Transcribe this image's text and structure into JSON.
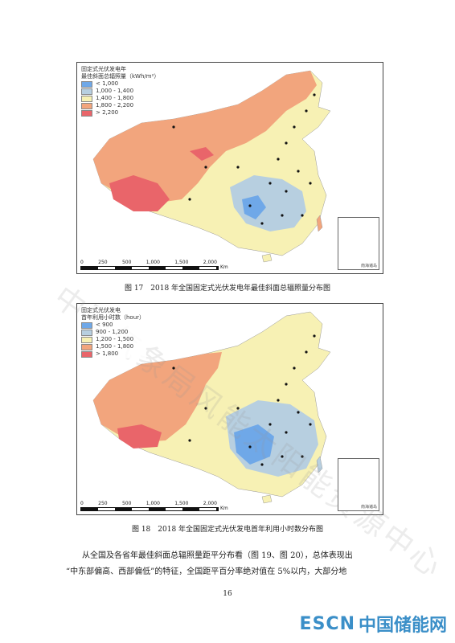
{
  "figure17": {
    "legend_title_line1": "固定式光伏发电年",
    "legend_title_line2": "最佳斜面总辐照量（kWh/m²）",
    "legend_items": [
      {
        "label": "< 1,000",
        "color": "#6fa8e8"
      },
      {
        "label": "1,000 - 1,400",
        "color": "#b7cfe0"
      },
      {
        "label": "1,400 - 1,800",
        "color": "#f7f1b4"
      },
      {
        "label": "1,800 - 2,200",
        "color": "#f2a57d"
      },
      {
        "label": "> 2,200",
        "color": "#e9656a"
      }
    ],
    "caption": "图 17　2018 年全国固定式光伏发电年最佳斜面总辐照量分布图"
  },
  "figure18": {
    "legend_title_line1": "固定式光伏发电",
    "legend_title_line2": "首年利用小时数（hour）",
    "legend_items": [
      {
        "label": "< 900",
        "color": "#6fa8e8"
      },
      {
        "label": "900 - 1,200",
        "color": "#b7cfe0"
      },
      {
        "label": "1,200 - 1,500",
        "color": "#f7f1b4"
      },
      {
        "label": "1,500 - 1,800",
        "color": "#f2a57d"
      },
      {
        "label": "> 1,800",
        "color": "#e9656a"
      }
    ],
    "caption": "图 18　2018 年全国固定式光伏发电首年利用小时数分布图"
  },
  "scale_ticks": [
    "0",
    "250",
    "500",
    "1,000",
    "1,500",
    "2,000"
  ],
  "scale_unit": "Km",
  "inset_label": "南海诸岛",
  "paragraph_line1": "从全国及各省年最佳斜面总辐照量距平分布看（图 19、图 20），总体表现出",
  "paragraph_line2": "“中东部偏高、西部偏低”的特征，全国距平百分率绝对值在 5%以内，大部分地",
  "page_number": "16",
  "watermark": "中国气象局风能太阳能资源中心",
  "footer": {
    "brand": "ESCN",
    "site": "中国储能网"
  }
}
